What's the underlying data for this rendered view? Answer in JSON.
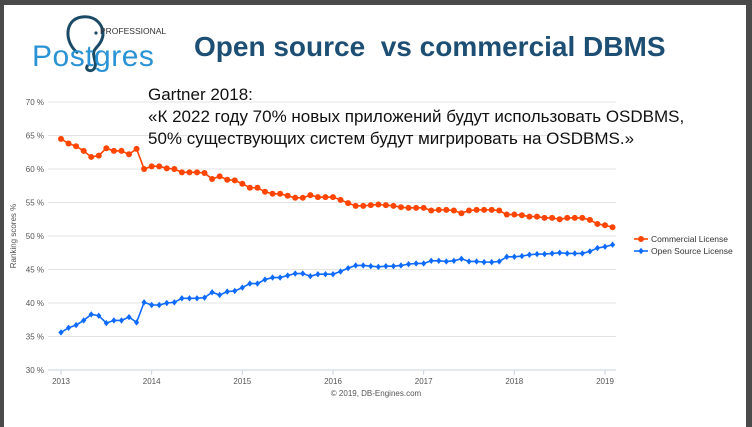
{
  "logo": {
    "word": "Postgres",
    "small": "PROFESSIONAL",
    "color": "#2a93d5",
    "elephant_color": "#1a4a66"
  },
  "slide": {
    "title": "Open source  vs commercial DBMS",
    "quote": "Gartner 2018:\n«К 2022 году 70% новых приложений будут использовать OSDBMS,\n50% существующих систем будут мигрировать на OSDBMS.»"
  },
  "chart_data": {
    "type": "line",
    "ylabel": "Ranking scores %",
    "ylim": [
      30,
      70
    ],
    "yticks": [
      "30 %",
      "35 %",
      "40 %",
      "45 %",
      "50 %",
      "55 %",
      "60 %",
      "65 %",
      "70 %"
    ],
    "xticks": [
      "2013",
      "2014",
      "2015",
      "2016",
      "2017",
      "2018",
      "2019"
    ],
    "x_range": [
      "2013-01",
      "2019-02"
    ],
    "grid": true,
    "legend_position": "right",
    "credit": "© 2019, DB-Engines.com",
    "series": [
      {
        "name": "Commercial License",
        "color": "#ff4500",
        "marker": "circle",
        "values": [
          64.5,
          63.8,
          63.4,
          62.7,
          61.8,
          62.0,
          63.1,
          62.7,
          62.7,
          62.2,
          63.0,
          60.0,
          60.4,
          60.4,
          60.1,
          60.0,
          59.5,
          59.5,
          59.5,
          59.4,
          58.5,
          58.9,
          58.4,
          58.3,
          57.8,
          57.2,
          57.2,
          56.6,
          56.3,
          56.3,
          56.0,
          55.7,
          55.7,
          56.1,
          55.8,
          55.8,
          55.8,
          55.4,
          54.9,
          54.5,
          54.5,
          54.6,
          54.7,
          54.6,
          54.5,
          54.3,
          54.2,
          54.2,
          54.2,
          53.8,
          53.9,
          53.9,
          53.8,
          53.4,
          53.8,
          53.9,
          53.9,
          53.9,
          53.8,
          53.2,
          53.2,
          53.1,
          52.9,
          52.9,
          52.7,
          52.7,
          52.5,
          52.7,
          52.7,
          52.7,
          52.4,
          51.8,
          51.6,
          51.3
        ]
      },
      {
        "name": "Open Source License",
        "color": "#0f6bff",
        "marker": "diamond",
        "values": [
          35.6,
          36.3,
          36.7,
          37.4,
          38.3,
          38.1,
          37.0,
          37.4,
          37.4,
          37.9,
          37.1,
          40.1,
          39.7,
          39.7,
          40.0,
          40.1,
          40.7,
          40.7,
          40.7,
          40.8,
          41.6,
          41.2,
          41.7,
          41.8,
          42.3,
          42.9,
          42.9,
          43.5,
          43.8,
          43.8,
          44.1,
          44.4,
          44.4,
          44.0,
          44.3,
          44.3,
          44.3,
          44.7,
          45.2,
          45.6,
          45.6,
          45.5,
          45.4,
          45.5,
          45.5,
          45.6,
          45.8,
          45.9,
          45.9,
          46.3,
          46.3,
          46.2,
          46.3,
          46.6,
          46.2,
          46.2,
          46.1,
          46.1,
          46.2,
          46.9,
          46.9,
          47.0,
          47.2,
          47.3,
          47.3,
          47.4,
          47.5,
          47.4,
          47.4,
          47.4,
          47.7,
          48.2,
          48.4,
          48.7
        ]
      }
    ]
  }
}
